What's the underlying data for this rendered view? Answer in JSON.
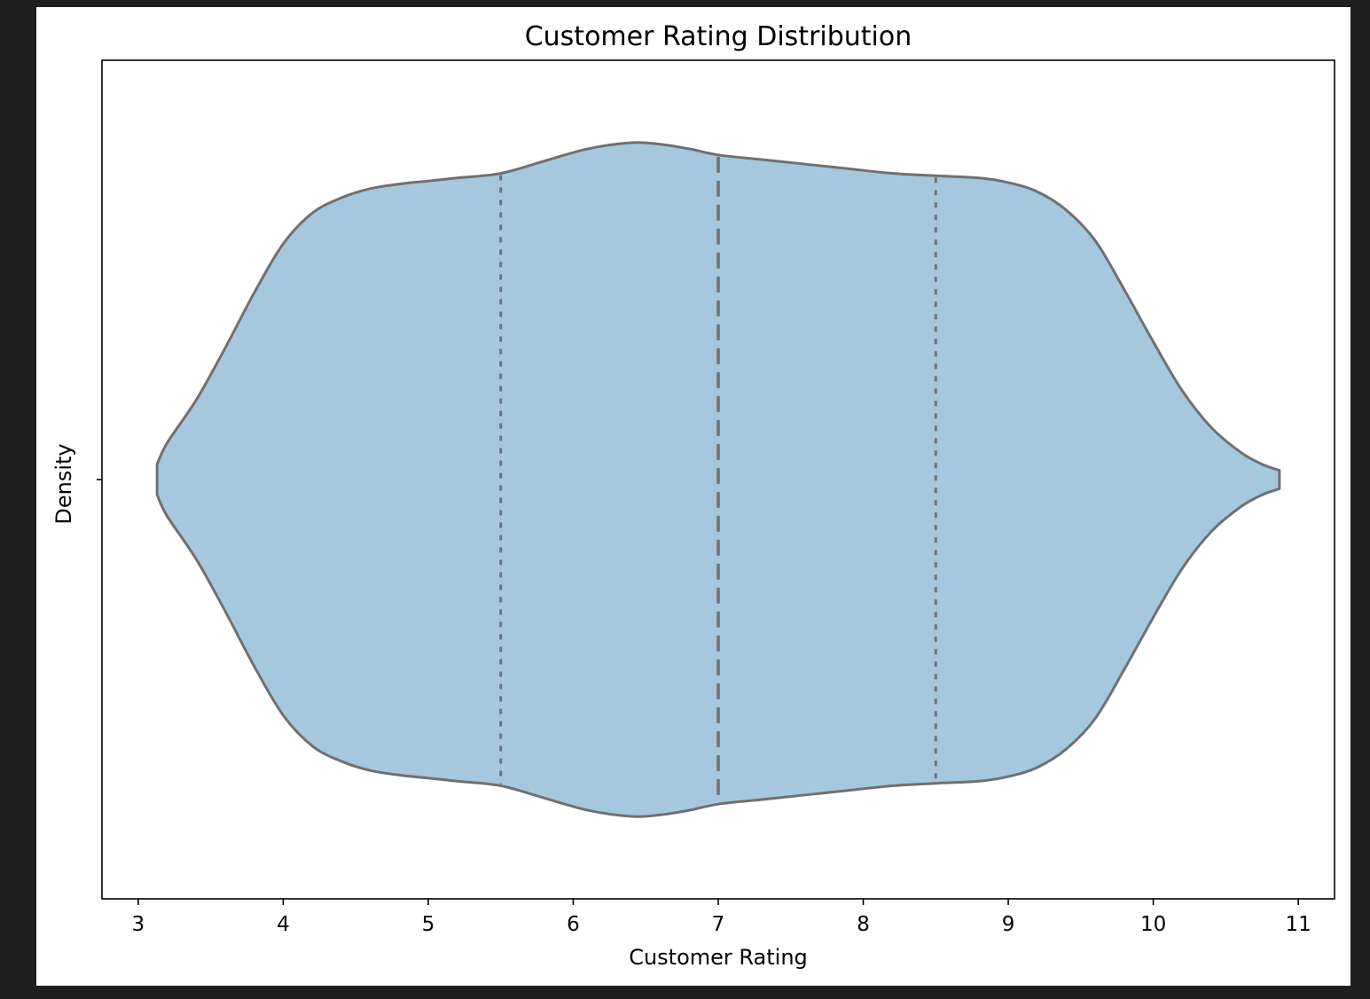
{
  "chart_data": {
    "type": "violin",
    "title": "Customer Rating Distribution",
    "xlabel": "Customer Rating",
    "ylabel": "Density",
    "xlim": [
      2.75,
      11.25
    ],
    "xticks": [
      3,
      4,
      5,
      6,
      7,
      8,
      9,
      10,
      11
    ],
    "grid": false,
    "orientation": "horizontal",
    "colors": {
      "fill": "#a6c8df",
      "stroke": "#707070",
      "axis": "#000000",
      "background": "#ffffff",
      "page": "#1e1e1e"
    },
    "quartiles": {
      "q1": 5.5,
      "median": 7.0,
      "q3": 8.5
    },
    "density": {
      "x": [
        3.13,
        3.2,
        3.4,
        3.6,
        3.8,
        4.0,
        4.2,
        4.4,
        4.6,
        4.8,
        5.0,
        5.2,
        5.5,
        5.8,
        6.1,
        6.4,
        6.6,
        6.8,
        7.0,
        7.3,
        7.6,
        7.9,
        8.2,
        8.5,
        8.8,
        9.0,
        9.2,
        9.4,
        9.6,
        9.8,
        10.0,
        10.2,
        10.4,
        10.6,
        10.75,
        10.87
      ],
      "y": [
        0.05,
        0.12,
        0.26,
        0.43,
        0.61,
        0.77,
        0.87,
        0.92,
        0.95,
        0.965,
        0.975,
        0.985,
        1.0,
        1.04,
        1.08,
        1.1,
        1.095,
        1.08,
        1.06,
        1.045,
        1.03,
        1.015,
        1.0,
        0.992,
        0.985,
        0.97,
        0.94,
        0.88,
        0.78,
        0.62,
        0.45,
        0.29,
        0.17,
        0.09,
        0.05,
        0.03
      ]
    }
  }
}
